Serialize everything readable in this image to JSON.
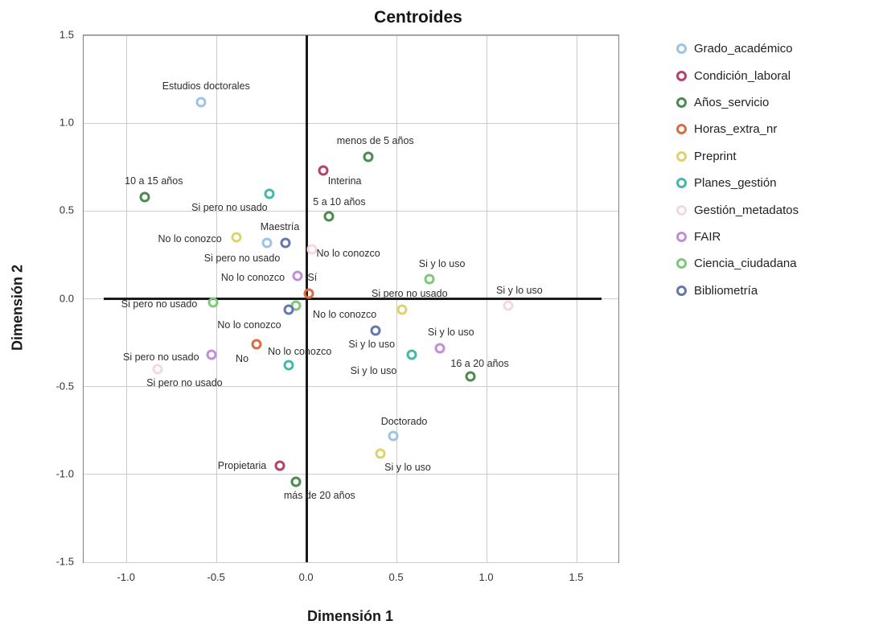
{
  "chart_data": {
    "type": "scatter",
    "title": "Centroides",
    "xlabel": "Dimensión 1",
    "ylabel": "Dimensión 2",
    "xlim": [
      -1.24,
      1.73
    ],
    "ylim": [
      -1.5,
      1.5
    ],
    "x_ticks": [
      -1.0,
      -0.5,
      0.0,
      0.5,
      1.0,
      1.5
    ],
    "x_tick_labels": [
      "-1.0",
      "-0.5",
      "0.0",
      "0.5",
      "1.0",
      "1.5"
    ],
    "y_ticks": [
      1.5,
      1.0,
      0.5,
      0.0,
      -0.5,
      -1.0,
      -1.5
    ],
    "y_tick_labels": [
      "1.5",
      "1.0",
      "0.5",
      "0.0",
      "-0.5",
      "-1.0",
      "-1.5"
    ],
    "grid": true,
    "legend_position": "right",
    "point_style": "open-circle",
    "series": [
      {
        "name": "Grado_académico",
        "color": "#9dc3e6",
        "points": [
          {
            "category": "Estudios doctorales",
            "x": -0.59,
            "y": 1.12,
            "label_x": -0.56,
            "label_y": 1.21
          },
          {
            "category": "Maestría",
            "x": -0.22,
            "y": 0.32,
            "label_x": -0.15,
            "label_y": 0.41
          },
          {
            "category": "Doctorado",
            "x": 0.48,
            "y": -0.78,
            "label_x": 0.54,
            "label_y": -0.7
          }
        ]
      },
      {
        "name": "Condición_laboral",
        "color": "#b4436b",
        "points": [
          {
            "category": "Interina",
            "x": 0.09,
            "y": 0.73,
            "label_x": 0.21,
            "label_y": 0.67
          },
          {
            "category": "Propietaria",
            "x": -0.15,
            "y": -0.95,
            "label_x": -0.36,
            "label_y": -0.95
          }
        ]
      },
      {
        "name": "Años_servicio",
        "color": "#4a8c4d",
        "points": [
          {
            "category": "menos de 5 años",
            "x": 0.34,
            "y": 0.81,
            "label_x": 0.38,
            "label_y": 0.9
          },
          {
            "category": "5 a 10 años",
            "x": 0.12,
            "y": 0.47,
            "label_x": 0.18,
            "label_y": 0.55
          },
          {
            "category": "10 a 15 años",
            "x": -0.9,
            "y": 0.58,
            "label_x": -0.85,
            "label_y": 0.67
          },
          {
            "category": "16 a 20 años",
            "x": 0.91,
            "y": -0.44,
            "label_x": 0.96,
            "label_y": -0.37
          },
          {
            "category": "más de 20 años",
            "x": -0.06,
            "y": -1.04,
            "label_x": 0.07,
            "label_y": -1.12
          }
        ]
      },
      {
        "name": "Horas_extra_nr",
        "color": "#d96c41",
        "points": [
          {
            "category": "Sí",
            "x": 0.01,
            "y": 0.03,
            "label_x": 0.03,
            "label_y": 0.12
          },
          {
            "category": "No",
            "x": -0.28,
            "y": -0.26,
            "label_x": -0.36,
            "label_y": -0.34
          }
        ]
      },
      {
        "name": "Preprint",
        "color": "#ddd36e",
        "points": [
          {
            "category": "No lo conozco",
            "x": -0.39,
            "y": 0.35,
            "label_x": -0.65,
            "label_y": 0.34
          },
          {
            "category": "Si pero no usado",
            "x": 0.53,
            "y": -0.06,
            "label_x": 0.57,
            "label_y": 0.03
          },
          {
            "category": "Si y lo uso",
            "x": 0.41,
            "y": -0.88,
            "label_x": 0.56,
            "label_y": -0.96
          }
        ]
      },
      {
        "name": "Planes_gestión",
        "color": "#43b9a9",
        "points": [
          {
            "category": "Si pero no usado",
            "x": -0.21,
            "y": 0.6,
            "label_x": -0.43,
            "label_y": 0.52
          },
          {
            "category": "No lo conozco",
            "x": -0.1,
            "y": -0.38,
            "label_x": -0.04,
            "label_y": -0.3
          },
          {
            "category": "Si y lo uso",
            "x": 0.58,
            "y": -0.32,
            "label_x": 0.37,
            "label_y": -0.41
          }
        ]
      },
      {
        "name": "Gestión_metadatos",
        "color": "#f4d8de",
        "points": [
          {
            "category": "No lo conozco",
            "x": 0.03,
            "y": 0.28,
            "label_x": 0.23,
            "label_y": 0.26
          },
          {
            "category": "Si pero no usado",
            "x": -0.83,
            "y": -0.4,
            "label_x": -0.68,
            "label_y": -0.48
          },
          {
            "category": "Si y lo uso",
            "x": 1.12,
            "y": -0.04,
            "label_x": 1.18,
            "label_y": 0.05
          }
        ]
      },
      {
        "name": "FAIR",
        "color": "#c18fd9",
        "points": [
          {
            "category": "No lo conozco",
            "x": -0.05,
            "y": 0.13,
            "label_x": -0.3,
            "label_y": 0.12
          },
          {
            "category": "Si pero no usado",
            "x": -0.53,
            "y": -0.32,
            "label_x": -0.81,
            "label_y": -0.33
          },
          {
            "category": "Si y lo uso",
            "x": 0.74,
            "y": -0.28,
            "label_x": 0.8,
            "label_y": -0.19
          }
        ]
      },
      {
        "name": "Ciencia_ciudadana",
        "color": "#7ec878",
        "points": [
          {
            "category": "Si pero no usado",
            "x": -0.52,
            "y": -0.02,
            "label_x": -0.82,
            "label_y": -0.03
          },
          {
            "category": "No lo conozco",
            "x": -0.06,
            "y": -0.04,
            "label_x": 0.21,
            "label_y": -0.09
          },
          {
            "category": "Si y lo uso",
            "x": 0.68,
            "y": 0.11,
            "label_x": 0.75,
            "label_y": 0.2
          }
        ]
      },
      {
        "name": "Bibliometría",
        "color": "#6378b1",
        "points": [
          {
            "category": "Si pero no usado",
            "x": -0.12,
            "y": 0.32,
            "label_x": -0.36,
            "label_y": 0.23
          },
          {
            "category": "No lo conozco",
            "x": -0.1,
            "y": -0.06,
            "label_x": -0.32,
            "label_y": -0.15
          },
          {
            "category": "Si y lo uso",
            "x": 0.38,
            "y": -0.18,
            "label_x": 0.36,
            "label_y": -0.26
          }
        ]
      }
    ]
  }
}
